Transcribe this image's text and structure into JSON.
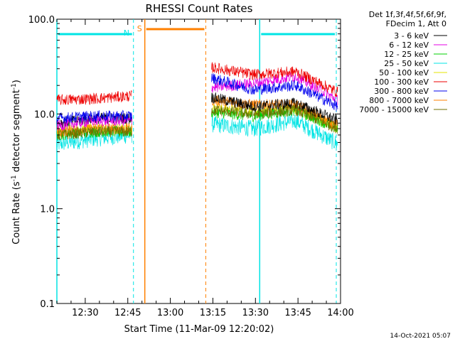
{
  "chart_data": {
    "type": "line",
    "title": "RHESSI Count Rates",
    "xlabel": "Start Time (11-Mar-09 12:20:02)",
    "ylabel_main": "Count Rate (s",
    "ylabel_sup": "-1",
    "ylabel_rest": " detector segment",
    "ylabel_sup2": "-1",
    "ylabel_end": ")",
    "y_scale": "log",
    "ylim": [
      0.1,
      100.0
    ],
    "xlim_minutes_after_12_00": [
      20.0,
      120.0
    ],
    "x_ticks": [
      {
        "value": 30,
        "label": "12:30"
      },
      {
        "value": 45,
        "label": "12:45"
      },
      {
        "value": 60,
        "label": "13:00"
      },
      {
        "value": 75,
        "label": "13:15"
      },
      {
        "value": 90,
        "label": "13:30"
      },
      {
        "value": 105,
        "label": "13:45"
      },
      {
        "value": 120,
        "label": "14:00"
      }
    ],
    "y_ticks": [
      {
        "value": 0.1,
        "label": "0.1"
      },
      {
        "value": 1.0,
        "label": "1.0"
      },
      {
        "value": 10.0,
        "label": "10.0"
      },
      {
        "value": 100.0,
        "label": "100.0"
      }
    ],
    "legend": {
      "header_line1": "Det 1f,3f,4f,5f,6f,9f,",
      "header_line2": "FDecim 1, Att 0",
      "placement": "top-right outside"
    },
    "series": [
      {
        "name": "3 - 6 keV",
        "color": "#000000",
        "seg1": [
          8.0,
          9.0,
          9.0
        ],
        "seg2": [
          15.0,
          12.0,
          13.0,
          8.5
        ]
      },
      {
        "name": "6 - 12 keV",
        "color": "#e400e4",
        "seg1": [
          7.5,
          8.5,
          8.5
        ],
        "seg2": [
          19.0,
          21.0,
          25.0,
          14.0
        ]
      },
      {
        "name": "12 - 25 keV",
        "color": "#00d000",
        "seg1": [
          6.0,
          6.5,
          6.5
        ],
        "seg2": [
          10.5,
          9.5,
          11.0,
          7.0
        ]
      },
      {
        "name": "25 - 50 keV",
        "color": "#00e4e4",
        "seg1": [
          4.8,
          5.5,
          6.0
        ],
        "seg2": [
          7.8,
          7.0,
          8.5,
          4.8
        ]
      },
      {
        "name": "50 - 100 keV",
        "color": "#e4e400",
        "seg1": [
          6.5,
          7.0,
          7.0
        ],
        "seg2": [
          11.5,
          10.5,
          11.5,
          7.0
        ]
      },
      {
        "name": "100 - 300 keV",
        "color": "#ee0000",
        "seg1": [
          14.0,
          14.5,
          15.5
        ],
        "seg2": [
          31.0,
          26.0,
          28.0,
          17.0
        ]
      },
      {
        "name": "300 - 800 keV",
        "color": "#0000ee",
        "seg1": [
          9.0,
          9.5,
          9.5
        ],
        "seg2": [
          24.0,
          18.0,
          20.0,
          12.0
        ]
      },
      {
        "name": "800 - 7000 keV",
        "color": "#ff8000",
        "seg1": [
          6.5,
          7.0,
          7.0
        ],
        "seg2": [
          14.0,
          12.5,
          12.5,
          7.5
        ]
      },
      {
        "name": "7000 - 15000 keV",
        "color": "#707000",
        "seg1": [
          6.0,
          6.5,
          6.5
        ],
        "seg2": [
          11.0,
          10.0,
          11.0,
          7.0
        ]
      }
    ],
    "segments": [
      {
        "x_start": 20.0,
        "x_end": 46.5
      },
      {
        "x_start": 74.5,
        "x_end": 119.0
      }
    ],
    "night_intervals": [
      {
        "label": "N",
        "x_start": 20.0,
        "x_end": 47.0,
        "color": "#00e4e4"
      },
      {
        "label": "",
        "x_start": 91.5,
        "x_end": 118.5,
        "color": "#00e4e4"
      }
    ],
    "saa_intervals": [
      {
        "label": "S",
        "x_start": 51.0,
        "x_end": 72.5,
        "color": "#ff8000"
      }
    ]
  },
  "footer": {
    "timestamp": "14-Oct-2021 05:07"
  }
}
